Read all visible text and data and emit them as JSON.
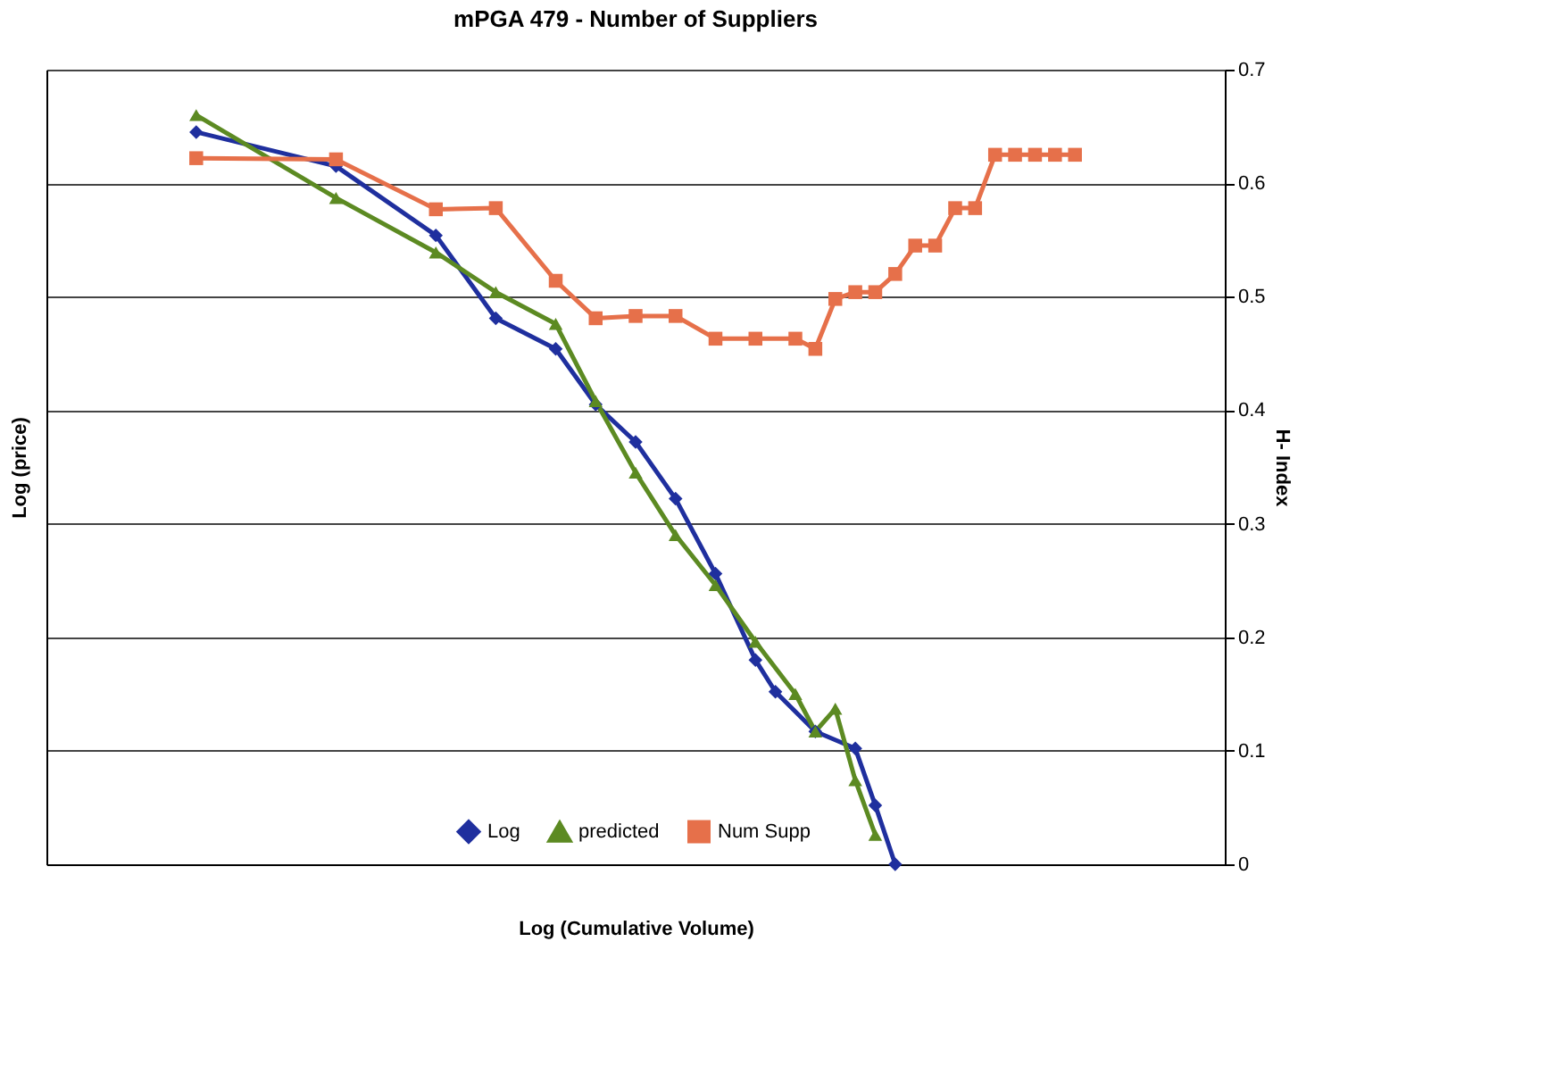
{
  "chart_data": {
    "type": "line",
    "title": "mPGA 479 - Number of Suppliers",
    "xlabel": "Log (Cumulative Volume)",
    "ylabel": "Log (price)",
    "y2label": "H- Index",
    "categories": [
      null,
      null,
      null,
      null,
      null,
      null,
      null,
      null,
      null,
      null,
      null,
      null,
      null,
      null,
      null,
      null,
      null,
      null,
      null,
      null,
      null,
      null,
      null,
      null,
      null,
      null,
      null,
      null,
      null,
      null,
      null,
      null,
      null,
      null,
      null,
      null,
      null,
      null,
      null,
      null,
      null,
      null,
      null,
      null,
      null,
      null,
      null,
      null,
      null,
      null,
      null,
      null,
      null,
      null,
      null,
      null,
      null,
      null,
      null
    ],
    "series": [
      {
        "name": "Log",
        "color": "#1f2f9e",
        "marker": "diamond",
        "values": [
          null,
          null,
          null,
          null,
          null,
          null,
          null,
          0.645,
          null,
          null,
          null,
          null,
          null,
          null,
          0.615,
          null,
          null,
          null,
          null,
          0.554,
          null,
          null,
          0.481,
          null,
          null,
          0.454,
          null,
          0.405,
          null,
          0.372,
          null,
          0.322,
          null,
          0.256,
          null,
          0.18,
          0.152,
          null,
          0.117,
          null,
          0.102,
          0.052,
          0,
          null,
          null,
          null,
          null,
          null,
          null,
          null,
          null,
          null,
          null,
          null,
          null,
          null,
          null,
          null,
          null
        ]
      },
      {
        "name": "predicted",
        "color": "#5c8a22",
        "marker": "triangle",
        "values": [
          null,
          null,
          null,
          null,
          null,
          null,
          null,
          0.66,
          null,
          null,
          null,
          null,
          null,
          null,
          0.587,
          null,
          null,
          null,
          null,
          0.539,
          null,
          null,
          0.504,
          null,
          null,
          0.476,
          null,
          0.408,
          null,
          0.345,
          null,
          0.29,
          null,
          0.246,
          null,
          0.196,
          null,
          0.15,
          0.117,
          0.137,
          0.074,
          0.026,
          null,
          null,
          null,
          null,
          null,
          null,
          null,
          null,
          null,
          null,
          null,
          null,
          null,
          null,
          null,
          null,
          null
        ]
      },
      {
        "name": "Num Supp",
        "color": "#e6704a",
        "marker": "square",
        "values": [
          null,
          null,
          null,
          null,
          null,
          null,
          null,
          0.622,
          null,
          null,
          null,
          null,
          null,
          null,
          0.621,
          null,
          null,
          null,
          null,
          0.577,
          null,
          null,
          0.578,
          null,
          null,
          0.514,
          null,
          0.481,
          null,
          0.483,
          null,
          0.483,
          null,
          0.463,
          null,
          0.463,
          null,
          0.463,
          0.454,
          0.498,
          0.504,
          0.504,
          0.52,
          0.545,
          0.545,
          0.578,
          0.578,
          0.625,
          0.625,
          0.625,
          0.625,
          0.625,
          null,
          null,
          null,
          null,
          null,
          null,
          null
        ]
      }
    ],
    "ylim": [
      0,
      0.7
    ],
    "yticks": [
      0,
      0.1,
      0.2,
      0.3,
      0.4,
      0.5,
      0.6,
      0.7
    ],
    "grid": "y",
    "legend": "bottom",
    "tick_labels": "y"
  }
}
